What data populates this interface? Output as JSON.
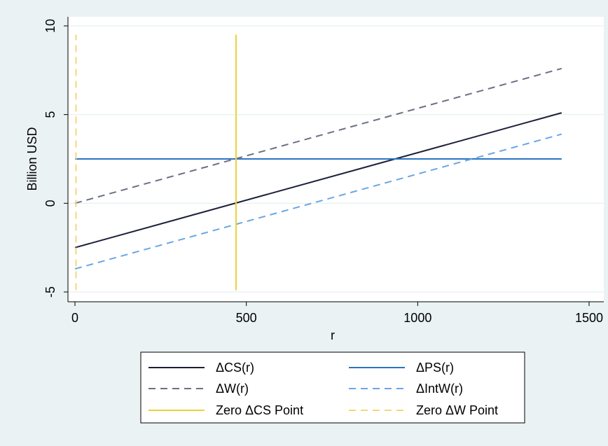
{
  "chart_data": {
    "type": "line",
    "title": "",
    "xlabel": "r",
    "ylabel": "Billion USD",
    "xlim": [
      0,
      1500
    ],
    "ylim": [
      -5,
      10
    ],
    "x_ticks": [
      0,
      500,
      1000,
      1500
    ],
    "y_ticks": [
      -5,
      0,
      5,
      10
    ],
    "grid": true,
    "legend_position": "bottom",
    "series": [
      {
        "name": "ΔCS(r)",
        "x": [
          0,
          1420
        ],
        "y": [
          -2.5,
          5.1
        ],
        "color": "#1c1f3a",
        "dash": "solid"
      },
      {
        "name": "ΔPS(r)",
        "x": [
          0,
          1420
        ],
        "y": [
          2.5,
          2.5
        ],
        "color": "#2a74c4",
        "dash": "solid"
      },
      {
        "name": "ΔW(r)",
        "x": [
          0,
          1420
        ],
        "y": [
          0,
          7.6
        ],
        "color": "#6e6e86",
        "dash": "dashed"
      },
      {
        "name": "ΔIntW(r)",
        "x": [
          0,
          1420
        ],
        "y": [
          -3.7,
          3.9
        ],
        "color": "#6aa6e6",
        "dash": "dashed"
      },
      {
        "name": "Zero ΔCS Point",
        "x": [
          470,
          470
        ],
        "y": [
          -4.9,
          9.5
        ],
        "color": "#ecd23a",
        "dash": "solid"
      },
      {
        "name": "Zero ΔW Point",
        "x": [
          3,
          3
        ],
        "y": [
          -4.9,
          9.5
        ],
        "color": "#f4d878",
        "dash": "dashed"
      }
    ],
    "legend_order": [
      0,
      1,
      2,
      3,
      4,
      5
    ]
  }
}
